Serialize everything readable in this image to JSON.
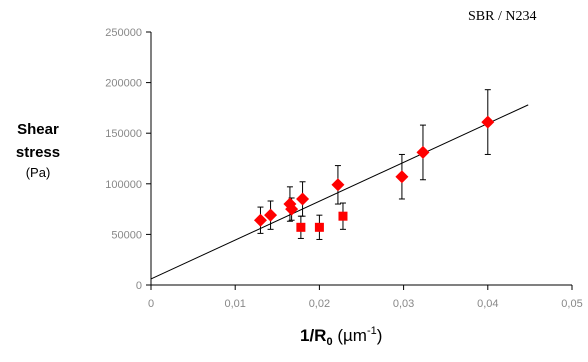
{
  "annotation": "SBR / N234",
  "ylabel": {
    "line1": "Shear",
    "line2": "stress",
    "unit": "(Pa)"
  },
  "xlabel": {
    "main": "1/R",
    "sub": "0",
    "unit_pre": "(µm",
    "unit_sup": "-1",
    "unit_post": ")"
  },
  "chart_data": {
    "type": "scatter",
    "title": "",
    "xlim": [
      0,
      0.05
    ],
    "ylim": [
      0,
      250000
    ],
    "xticks": [
      0,
      0.01,
      0.02,
      0.03,
      0.04,
      0.05
    ],
    "xtick_labels": [
      "0",
      "0,01",
      "0,02",
      "0,03",
      "0,04",
      "0,05"
    ],
    "yticks": [
      0,
      50000,
      100000,
      150000,
      200000,
      250000
    ],
    "ytick_labels": [
      "0",
      "50000",
      "100000",
      "150000",
      "200000",
      "250000"
    ],
    "grid": false,
    "legend": "none",
    "color": "#ff0000",
    "series": [
      {
        "marker": "diamond",
        "points": [
          {
            "x": 0.013,
            "y": 64000,
            "err": 13000
          },
          {
            "x": 0.0142,
            "y": 69000,
            "err": 14000
          },
          {
            "x": 0.0165,
            "y": 80000,
            "err": 17000
          },
          {
            "x": 0.0167,
            "y": 75000,
            "err": 11000
          },
          {
            "x": 0.018,
            "y": 85000,
            "err": 17000
          },
          {
            "x": 0.0222,
            "y": 99000,
            "err": 19000
          },
          {
            "x": 0.0298,
            "y": 107000,
            "err": 22000
          },
          {
            "x": 0.0323,
            "y": 131000,
            "err": 27000
          },
          {
            "x": 0.04,
            "y": 161000,
            "err": 32000
          }
        ]
      },
      {
        "marker": "square",
        "points": [
          {
            "x": 0.0178,
            "y": 57000,
            "err": 11000
          },
          {
            "x": 0.02,
            "y": 57000,
            "err": 12000
          },
          {
            "x": 0.0228,
            "y": 68000,
            "err": 13000
          }
        ]
      }
    ],
    "trendline": {
      "x": [
        0,
        0.0448
      ],
      "y": [
        6000,
        178000
      ]
    }
  }
}
